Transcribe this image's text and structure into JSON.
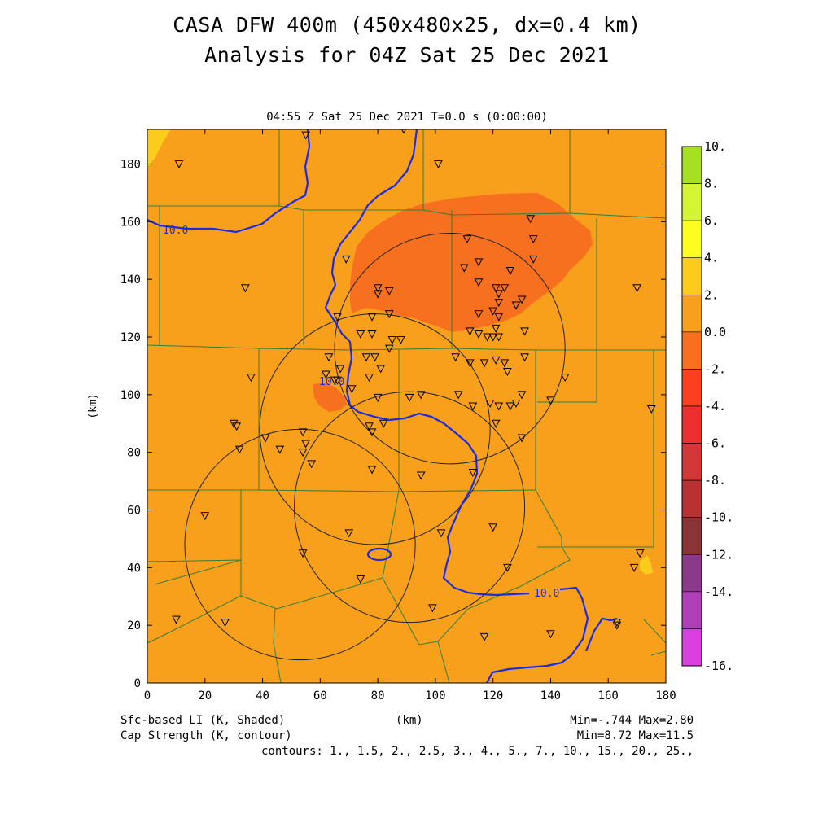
{
  "header": {
    "title_line1": "CASA DFW 400m (450x480x25, dx=0.4 km)",
    "title_line2": "Analysis for 04Z Sat 25 Dec 2021",
    "subtitle": "04:55 Z Sat 25 Dec 2021    T=0.0 s (0:00:00)"
  },
  "axes": {
    "x_label": "(km)",
    "y_label": "(km)",
    "x_ticks": [
      0,
      20,
      40,
      60,
      80,
      100,
      120,
      140,
      160,
      180
    ],
    "y_ticks": [
      0,
      20,
      40,
      60,
      80,
      100,
      120,
      140,
      160,
      180
    ],
    "x_range": [
      0,
      180
    ],
    "y_range": [
      0,
      192
    ]
  },
  "colorbar": {
    "labels": [
      "10.",
      "8.",
      "6.",
      "4.",
      "2.",
      "0.0",
      "-2.",
      "-4.",
      "-6.",
      "-8.",
      "-10.",
      "-12.",
      "-14.",
      "-16."
    ],
    "colors": [
      "#a6e022",
      "#d4f531",
      "#fdfd1e",
      "#fbcc1c",
      "#f8a01c",
      "#f67020",
      "#fa401e",
      "#ec3030",
      "#d23838",
      "#b83232",
      "#8a3436",
      "#8a3a8a",
      "#b040b8",
      "#d840e0"
    ]
  },
  "map": {
    "background_color": "#f8a01c",
    "negative_li_color": "#f67020",
    "positive_li_color": "#fbcc1c",
    "contour_color": "#1a2be0",
    "contour_labels": [
      "10.0",
      "10.0",
      "10.0"
    ]
  },
  "footer": {
    "left_line1": "Sfc-based LI (K, Shaded)",
    "left_line2": "Cap Strength (K, contour)",
    "center": "(km)",
    "right_line1": "Min=-.744 Max=2.80",
    "right_line2": "Min=8.72 Max=11.5",
    "contours": "contours: 1., 1.5, 2., 2.5, 3., 4., 5., 7., 10., 15., 20., 25.,"
  },
  "radars": [
    {
      "x": 53,
      "y": 48,
      "r": 40
    },
    {
      "x": 79,
      "y": 88,
      "r": 40
    },
    {
      "x": 105,
      "y": 116,
      "r": 40
    },
    {
      "x": 91,
      "y": 61,
      "r": 40
    }
  ],
  "stations": [
    [
      55,
      190
    ],
    [
      89,
      192
    ],
    [
      11,
      180
    ],
    [
      101,
      180
    ],
    [
      34,
      137
    ],
    [
      69,
      147
    ],
    [
      111,
      154
    ],
    [
      126,
      143
    ],
    [
      133,
      161
    ],
    [
      134,
      154
    ],
    [
      134,
      147
    ],
    [
      110,
      144
    ],
    [
      115,
      146
    ],
    [
      115,
      139
    ],
    [
      121,
      137
    ],
    [
      122,
      135
    ],
    [
      122,
      132
    ],
    [
      124,
      137
    ],
    [
      128,
      131
    ],
    [
      130,
      133
    ],
    [
      80,
      137
    ],
    [
      80,
      135
    ],
    [
      84,
      136
    ],
    [
      115,
      128
    ],
    [
      120,
      129
    ],
    [
      122,
      127
    ],
    [
      66,
      127
    ],
    [
      78,
      127
    ],
    [
      84,
      128
    ],
    [
      112,
      122
    ],
    [
      115,
      121
    ],
    [
      120,
      120
    ],
    [
      118,
      120
    ],
    [
      121,
      123
    ],
    [
      122,
      120
    ],
    [
      131,
      122
    ],
    [
      74,
      121
    ],
    [
      78,
      121
    ],
    [
      85,
      119
    ],
    [
      88,
      119
    ],
    [
      84,
      116
    ],
    [
      63,
      113
    ],
    [
      76,
      113
    ],
    [
      79,
      113
    ],
    [
      107,
      113
    ],
    [
      131,
      113
    ],
    [
      112,
      111
    ],
    [
      117,
      111
    ],
    [
      121,
      112
    ],
    [
      124,
      111
    ],
    [
      125,
      108
    ],
    [
      62,
      107
    ],
    [
      65,
      105
    ],
    [
      66,
      105
    ],
    [
      67,
      109
    ],
    [
      77,
      106
    ],
    [
      81,
      109
    ],
    [
      36,
      106
    ],
    [
      145,
      106
    ],
    [
      71,
      102
    ],
    [
      80,
      99
    ],
    [
      91,
      99
    ],
    [
      95,
      100
    ],
    [
      108,
      100
    ],
    [
      113,
      96
    ],
    [
      119,
      97
    ],
    [
      122,
      96
    ],
    [
      126,
      96
    ],
    [
      128,
      97
    ],
    [
      130,
      100
    ],
    [
      140,
      98
    ],
    [
      175,
      95
    ],
    [
      30,
      90
    ],
    [
      31,
      89
    ],
    [
      77,
      89
    ],
    [
      82,
      90
    ],
    [
      121,
      90
    ],
    [
      54,
      87
    ],
    [
      78,
      87
    ],
    [
      130,
      85
    ],
    [
      55,
      83
    ],
    [
      41,
      85
    ],
    [
      32,
      81
    ],
    [
      46,
      81
    ],
    [
      54,
      80
    ],
    [
      57,
      76
    ],
    [
      78,
      74
    ],
    [
      95,
      72
    ],
    [
      113,
      73
    ],
    [
      170,
      137
    ],
    [
      20,
      58
    ],
    [
      70,
      52
    ],
    [
      102,
      52
    ],
    [
      120,
      54
    ],
    [
      54,
      45
    ],
    [
      74,
      36
    ],
    [
      125,
      40
    ],
    [
      169,
      40
    ],
    [
      171,
      45
    ],
    [
      10,
      22
    ],
    [
      27,
      21
    ],
    [
      99,
      26
    ],
    [
      117,
      16
    ],
    [
      140,
      17
    ],
    [
      163,
      20
    ],
    [
      163,
      21
    ]
  ]
}
